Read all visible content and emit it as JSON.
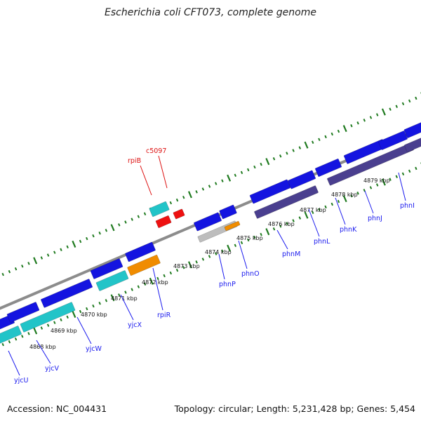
{
  "title": "Escherichia coli CFT073, complete genome",
  "footer": {
    "accession": "Accession: NC_004431",
    "summary": "Topology: circular; Length: 5,231,428 bp; Genes: 5,454"
  },
  "colors": {
    "backbone": "#8c8c8c",
    "tick_color": "#1f7a1f",
    "forward_cds": "#1414e0",
    "forward_rna": "#22c4c8",
    "reverse_cds": "#4a3f8f",
    "reverse_cds_cyan": "#22c4c8",
    "pseudo_gray": "#bdbdbd",
    "orange": "#f08c00",
    "red": "#ee1111",
    "label_blue": "#1a1aee",
    "label_red": "#dd1111"
  },
  "scale": {
    "tick_labels": [
      "4868 kbp",
      "4869 kbp",
      "4870 kbp",
      "4871 kbp",
      "4872 kbp",
      "4873 kbp",
      "4874 kbp",
      "4875 kbp",
      "4876 kbp",
      "4877 kbp",
      "4878 kbp",
      "4879 kbp"
    ]
  },
  "labels": {
    "below": [
      "yjcU",
      "yjcV",
      "yjcW",
      "yjcX",
      "rpiR",
      "phnP",
      "phnO",
      "phnM",
      "phnL",
      "phnK",
      "phnJ",
      "phnI"
    ],
    "above": [
      "rpiB",
      "c5097"
    ]
  }
}
